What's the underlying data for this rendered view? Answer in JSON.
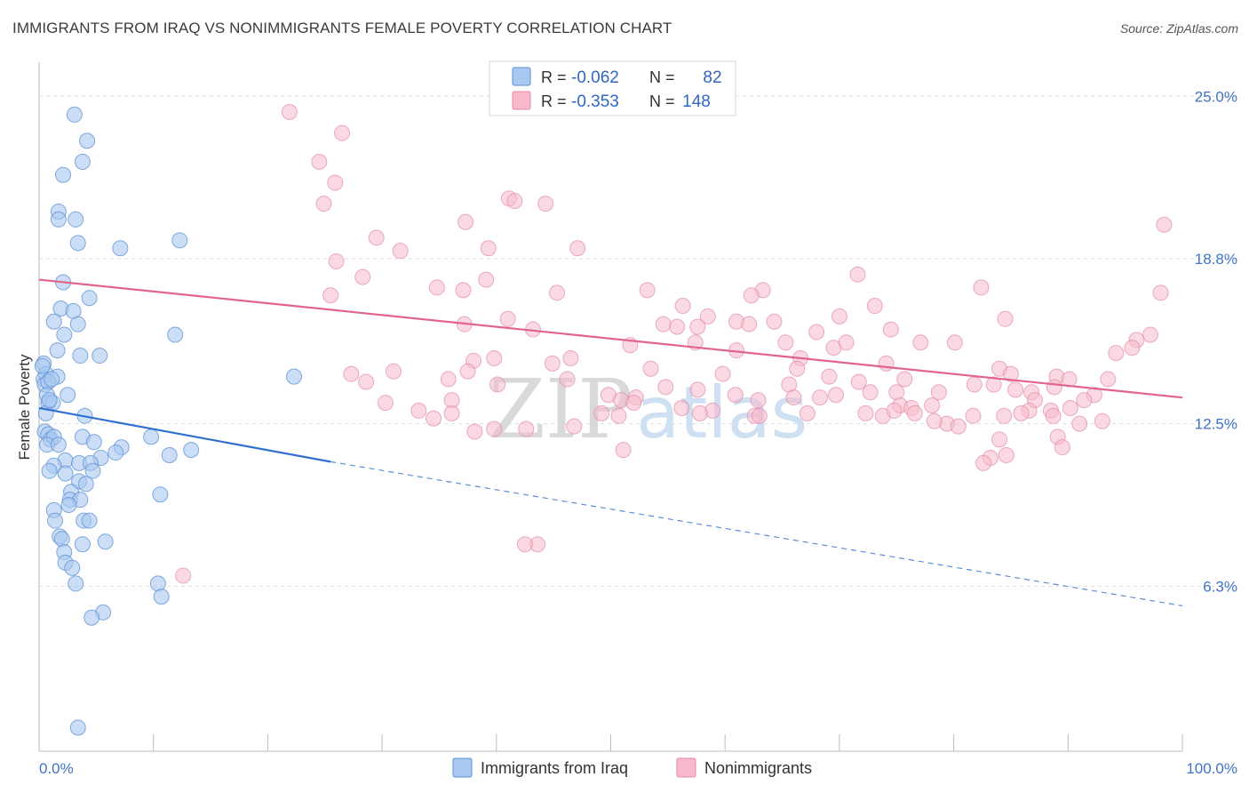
{
  "title": "IMMIGRANTS FROM IRAQ VS NONIMMIGRANTS FEMALE POVERTY CORRELATION CHART",
  "source": "Source: ZipAtlas.com",
  "watermark": {
    "zip": "ZIP",
    "atlas": "atlas"
  },
  "legend": {
    "r_label": "R =",
    "n_label": "N =",
    "rows": [
      {
        "r": "-0.062",
        "n": "82",
        "color": "#a9c8f0",
        "stroke": "#5b8fd6"
      },
      {
        "r": "-0.353",
        "n": "148",
        "color": "#f7b9cb",
        "stroke": "#e38aa6"
      }
    ]
  },
  "bottom_legend": [
    "Immigrants from Iraq",
    "Nonimmigrants"
  ],
  "chart_data": {
    "type": "scatter",
    "ylabel": "Female Poverty",
    "xlabel": "",
    "xlim": [
      0,
      100
    ],
    "ylim": [
      0,
      26.3
    ],
    "x_tick_labels": [
      "0.0%",
      "100.0%"
    ],
    "y_ticks": [
      6.3,
      12.5,
      18.8,
      25.0
    ],
    "y_tick_labels": [
      "6.3%",
      "12.5%",
      "18.8%",
      "25.0%"
    ],
    "grid": true,
    "colors": {
      "iraq_fill": "#a9c8f0",
      "iraq_stroke": "#5b8fd6",
      "iraq_line": "#2f6fd0",
      "non_fill": "#f7b9cb",
      "non_stroke": "#e38aa6",
      "non_line": "#e2648d"
    },
    "series": [
      {
        "name": "Immigrants from Iraq",
        "points": [
          [
            3.1,
            24.3
          ],
          [
            4.2,
            23.3
          ],
          [
            3.8,
            22.5
          ],
          [
            2.1,
            22.0
          ],
          [
            1.7,
            20.6
          ],
          [
            3.2,
            20.3
          ],
          [
            1.7,
            20.3
          ],
          [
            3.4,
            19.4
          ],
          [
            7.1,
            19.2
          ],
          [
            12.3,
            19.5
          ],
          [
            2.1,
            17.9
          ],
          [
            4.4,
            17.3
          ],
          [
            1.9,
            16.9
          ],
          [
            3.0,
            16.8
          ],
          [
            1.3,
            16.4
          ],
          [
            3.4,
            16.3
          ],
          [
            2.2,
            15.9
          ],
          [
            11.9,
            15.9
          ],
          [
            1.6,
            15.3
          ],
          [
            3.6,
            15.1
          ],
          [
            5.3,
            15.1
          ],
          [
            0.4,
            14.8
          ],
          [
            0.6,
            14.4
          ],
          [
            1.6,
            14.3
          ],
          [
            0.4,
            14.2
          ],
          [
            0.5,
            14.0
          ],
          [
            0.8,
            14.1
          ],
          [
            22.3,
            14.3
          ],
          [
            0.7,
            13.6
          ],
          [
            2.5,
            13.6
          ],
          [
            0.8,
            13.3
          ],
          [
            1.2,
            13.3
          ],
          [
            0.6,
            12.9
          ],
          [
            4.0,
            12.8
          ],
          [
            0.5,
            12.2
          ],
          [
            0.8,
            12.1
          ],
          [
            1.0,
            11.9
          ],
          [
            1.3,
            12.0
          ],
          [
            3.8,
            12.0
          ],
          [
            9.8,
            12.0
          ],
          [
            0.7,
            11.7
          ],
          [
            1.7,
            11.7
          ],
          [
            4.8,
            11.8
          ],
          [
            7.2,
            11.6
          ],
          [
            6.7,
            11.4
          ],
          [
            5.4,
            11.2
          ],
          [
            11.4,
            11.3
          ],
          [
            13.3,
            11.5
          ],
          [
            2.3,
            11.1
          ],
          [
            3.5,
            11.0
          ],
          [
            1.3,
            10.9
          ],
          [
            4.5,
            11.0
          ],
          [
            0.9,
            10.7
          ],
          [
            2.3,
            10.6
          ],
          [
            4.7,
            10.7
          ],
          [
            3.5,
            10.3
          ],
          [
            4.1,
            10.2
          ],
          [
            2.8,
            9.9
          ],
          [
            10.6,
            9.8
          ],
          [
            2.7,
            9.6
          ],
          [
            3.6,
            9.6
          ],
          [
            2.6,
            9.4
          ],
          [
            1.3,
            9.2
          ],
          [
            1.4,
            8.8
          ],
          [
            3.9,
            8.8
          ],
          [
            4.4,
            8.8
          ],
          [
            1.8,
            8.2
          ],
          [
            2.0,
            8.1
          ],
          [
            5.8,
            8.0
          ],
          [
            3.8,
            7.9
          ],
          [
            2.2,
            7.6
          ],
          [
            2.3,
            7.2
          ],
          [
            2.9,
            7.0
          ],
          [
            3.2,
            6.4
          ],
          [
            10.4,
            6.4
          ],
          [
            10.7,
            5.9
          ],
          [
            5.6,
            5.3
          ],
          [
            4.6,
            5.1
          ],
          [
            3.4,
            0.9
          ],
          [
            0.3,
            14.7
          ],
          [
            1.1,
            14.2
          ],
          [
            0.9,
            13.4
          ]
        ]
      },
      {
        "name": "Nonimmigrants",
        "points": [
          [
            21.9,
            24.4
          ],
          [
            26.5,
            23.6
          ],
          [
            24.5,
            22.5
          ],
          [
            25.9,
            21.7
          ],
          [
            41.1,
            21.1
          ],
          [
            41.6,
            21.0
          ],
          [
            24.9,
            20.9
          ],
          [
            44.3,
            20.9
          ],
          [
            37.3,
            20.2
          ],
          [
            29.5,
            19.6
          ],
          [
            31.6,
            19.1
          ],
          [
            39.3,
            19.2
          ],
          [
            47.1,
            19.2
          ],
          [
            98.4,
            20.1
          ],
          [
            26.0,
            18.7
          ],
          [
            28.3,
            18.1
          ],
          [
            39.1,
            18.0
          ],
          [
            34.8,
            17.7
          ],
          [
            45.3,
            17.5
          ],
          [
            63.3,
            17.6
          ],
          [
            37.1,
            17.6
          ],
          [
            25.5,
            17.4
          ],
          [
            53.2,
            17.6
          ],
          [
            71.6,
            18.2
          ],
          [
            82.4,
            17.7
          ],
          [
            98.1,
            17.5
          ],
          [
            62.3,
            17.4
          ],
          [
            73.1,
            17.0
          ],
          [
            56.3,
            17.0
          ],
          [
            70.0,
            16.6
          ],
          [
            41.0,
            16.5
          ],
          [
            58.5,
            16.6
          ],
          [
            61.0,
            16.4
          ],
          [
            64.3,
            16.4
          ],
          [
            57.6,
            16.2
          ],
          [
            37.2,
            16.3
          ],
          [
            43.2,
            16.1
          ],
          [
            62.1,
            16.3
          ],
          [
            68.0,
            16.0
          ],
          [
            74.5,
            16.1
          ],
          [
            84.5,
            16.5
          ],
          [
            54.6,
            16.3
          ],
          [
            55.8,
            16.2
          ],
          [
            97.2,
            15.9
          ],
          [
            96.0,
            15.7
          ],
          [
            95.6,
            15.4
          ],
          [
            51.7,
            15.5
          ],
          [
            57.4,
            15.6
          ],
          [
            65.3,
            15.6
          ],
          [
            69.5,
            15.4
          ],
          [
            70.6,
            15.6
          ],
          [
            77.1,
            15.6
          ],
          [
            80.1,
            15.6
          ],
          [
            94.2,
            15.2
          ],
          [
            39.8,
            15.0
          ],
          [
            46.5,
            15.0
          ],
          [
            61.0,
            15.3
          ],
          [
            66.6,
            15.0
          ],
          [
            74.1,
            14.8
          ],
          [
            38.0,
            14.9
          ],
          [
            44.9,
            14.8
          ],
          [
            53.5,
            14.6
          ],
          [
            59.8,
            14.4
          ],
          [
            66.3,
            14.6
          ],
          [
            27.3,
            14.4
          ],
          [
            31.0,
            14.5
          ],
          [
            37.5,
            14.5
          ],
          [
            35.8,
            14.2
          ],
          [
            46.2,
            14.2
          ],
          [
            69.1,
            14.3
          ],
          [
            75.7,
            14.2
          ],
          [
            84.0,
            14.6
          ],
          [
            85.0,
            14.4
          ],
          [
            89.0,
            14.3
          ],
          [
            90.1,
            14.2
          ],
          [
            93.5,
            14.2
          ],
          [
            28.6,
            14.1
          ],
          [
            40.1,
            14.0
          ],
          [
            54.8,
            13.9
          ],
          [
            57.6,
            13.8
          ],
          [
            65.6,
            14.0
          ],
          [
            71.7,
            14.1
          ],
          [
            81.8,
            14.0
          ],
          [
            83.5,
            14.0
          ],
          [
            85.4,
            13.8
          ],
          [
            88.8,
            13.9
          ],
          [
            49.8,
            13.6
          ],
          [
            50.9,
            13.4
          ],
          [
            52.2,
            13.5
          ],
          [
            60.9,
            13.6
          ],
          [
            68.3,
            13.5
          ],
          [
            72.7,
            13.7
          ],
          [
            75.0,
            13.7
          ],
          [
            78.7,
            13.7
          ],
          [
            86.8,
            13.7
          ],
          [
            92.3,
            13.6
          ],
          [
            69.7,
            13.6
          ],
          [
            87.1,
            13.4
          ],
          [
            30.3,
            13.3
          ],
          [
            36.1,
            13.4
          ],
          [
            52.0,
            13.3
          ],
          [
            56.2,
            13.1
          ],
          [
            58.9,
            13.0
          ],
          [
            62.9,
            13.4
          ],
          [
            75.3,
            13.2
          ],
          [
            76.3,
            13.1
          ],
          [
            78.1,
            13.2
          ],
          [
            86.6,
            13.0
          ],
          [
            88.5,
            13.0
          ],
          [
            90.2,
            13.1
          ],
          [
            91.4,
            13.4
          ],
          [
            33.2,
            13.0
          ],
          [
            34.5,
            12.7
          ],
          [
            36.1,
            12.9
          ],
          [
            49.2,
            12.9
          ],
          [
            50.7,
            12.8
          ],
          [
            57.8,
            12.9
          ],
          [
            62.6,
            12.8
          ],
          [
            63.0,
            12.8
          ],
          [
            67.2,
            12.9
          ],
          [
            72.3,
            12.9
          ],
          [
            73.8,
            12.8
          ],
          [
            76.6,
            12.9
          ],
          [
            81.7,
            12.8
          ],
          [
            84.4,
            12.8
          ],
          [
            85.9,
            12.9
          ],
          [
            88.7,
            12.8
          ],
          [
            79.4,
            12.5
          ],
          [
            91.0,
            12.5
          ],
          [
            39.8,
            12.3
          ],
          [
            38.1,
            12.2
          ],
          [
            42.6,
            12.3
          ],
          [
            93.0,
            12.6
          ],
          [
            78.3,
            12.6
          ],
          [
            84.0,
            11.9
          ],
          [
            89.1,
            12.0
          ],
          [
            51.1,
            11.5
          ],
          [
            89.5,
            11.6
          ],
          [
            84.6,
            11.3
          ],
          [
            83.2,
            11.2
          ],
          [
            82.6,
            11.0
          ],
          [
            43.6,
            7.9
          ],
          [
            42.5,
            7.9
          ],
          [
            12.6,
            6.7
          ],
          [
            46.8,
            12.4
          ],
          [
            66.0,
            13.5
          ],
          [
            74.8,
            13.0
          ],
          [
            80.4,
            12.4
          ]
        ]
      }
    ],
    "trend_lines": [
      {
        "series": "Immigrants from Iraq",
        "solid": [
          [
            0,
            13.1
          ],
          [
            25.5,
            11.05
          ]
        ],
        "dashed": [
          [
            25.5,
            11.05
          ],
          [
            100,
            5.55
          ]
        ]
      },
      {
        "series": "Nonimmigrants",
        "solid": [
          [
            0,
            18.0
          ],
          [
            100,
            13.5
          ]
        ]
      }
    ]
  }
}
